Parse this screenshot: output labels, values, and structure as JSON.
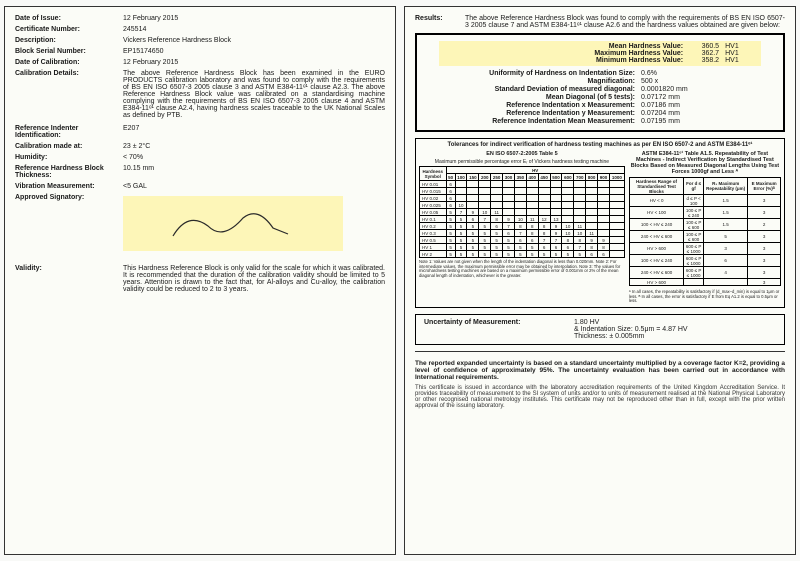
{
  "left": {
    "fields": [
      {
        "label": "Date of Issue:",
        "value": "12 February 2015"
      },
      {
        "label": "Certificate Number:",
        "value": "245514"
      },
      {
        "label": "Description:",
        "value": "Vickers Reference Hardness Block"
      },
      {
        "label": "Block Serial Number:",
        "value": "EP15174650"
      },
      {
        "label": "Date of Calibration:",
        "value": "12 February 2015"
      }
    ],
    "calibration_label": "Calibration Details:",
    "calibration_text": "The above Reference Hardness Block has been examined in the EURO PRODUCTS calibration laboratory and was found to comply with the requirements of BS EN ISO 6507-3 2005 clause 3 and ASTM E384-11ᵉ¹ clause A2.3. The above Reference Hardness Block value was calibrated on a standardising machine complying with the requirements of BS EN ISO 6507-3 2005 clause 4 and ASTM E384-11ᵉ¹ clause A2.4, having hardness scales traceable to the UK National Scales as defined by PTB.",
    "fields2": [
      {
        "label": "Reference Indenter Identification:",
        "value": "E207"
      },
      {
        "label": "Calibration made at:",
        "value": "23 ± 2°C"
      },
      {
        "label": "Humidity:",
        "value": "< 70%"
      },
      {
        "label": "Reference Hardness Block Thickness:",
        "value": "10.15 mm"
      },
      {
        "label": "Vibration Measurement:",
        "value": "<5 GAL"
      }
    ],
    "signatory_label": "Approved Signatory:",
    "validity_label": "Validity:",
    "validity_text": "This Hardness Reference Block is only valid for the scale for which it was calibrated. It is recommended that the duration of the calibration validity should be limited to 5 years. Attention is drawn to the fact that, for Al-alloys and Cu-alloy, the calibration validity could be reduced to 2 to 3 years."
  },
  "right": {
    "results_label": "Results:",
    "results_intro": "The above Reference Hardness Block was found to comply with the requirements of BS EN ISO 6507-3 2005 clause 7 and ASTM E384-11ᵉ¹ clause A2.6 and the hardness values obtained are given below:",
    "hl": [
      {
        "label": "Mean Hardness Value:",
        "value": "360.5",
        "unit": "HV1"
      },
      {
        "label": "Maximum Hardness Value:",
        "value": "362.7",
        "unit": "HV1"
      },
      {
        "label": "Minimum Hardness Value:",
        "value": "358.2",
        "unit": "HV1"
      }
    ],
    "lines": [
      {
        "k": "Uniformity of Hardness on Indentation Size:",
        "v": "0.6%"
      },
      {
        "k": "Magnification:",
        "v": "500 x"
      },
      {
        "k": "Standard Deviation of measured diagonal:",
        "v": "0.0001820 mm"
      },
      {
        "k": "Mean Diagonal (of 5 tests):",
        "v": "0.07172 mm"
      },
      {
        "k": "Reference Indentation x Measurement:",
        "v": "0.07186 mm"
      },
      {
        "k": "Reference Indentation y Measurement:",
        "v": "0.07204 mm"
      },
      {
        "k": "Reference Indentation Mean Measurement:",
        "v": "0.07195 mm"
      }
    ],
    "toler_title": "Tolerances for indirect verification of hardness testing machines as per EN ISO 6507-2 and ASTM E384-11ᵉ¹",
    "toler_left_title": "EN ISO 6507-2:2005 Table 5",
    "toler_right_title": "ASTM E384-11ᵉ¹ Table A1.5. Repeatability of Test Machines - Indirect Verification by Standardised Test Blocks Based on Measured Diagonal Lengths Using Test Forces 1000gf and Less ᴬ",
    "iso_header_top": "Maximum permissible percentage error Eᵣ of Vickers hardness testing machine",
    "iso_rows": [
      {
        "sym": "HV 0.01",
        "r": [
          "6"
        ]
      },
      {
        "sym": "HV 0.015",
        "r": [
          "6"
        ]
      },
      {
        "sym": "HV 0.02",
        "r": [
          "6"
        ]
      },
      {
        "sym": "HV 0.025",
        "r": [
          "6",
          "10"
        ]
      },
      {
        "sym": "HV 0.05",
        "r": [
          "5",
          "7",
          "9",
          "10",
          "11"
        ]
      },
      {
        "sym": "HV 0.1",
        "r": [
          "5",
          "5",
          "6",
          "7",
          "8",
          "9",
          "10",
          "11",
          "12",
          "13"
        ]
      },
      {
        "sym": "HV 0.2",
        "r": [
          "5",
          "5",
          "5",
          "5",
          "6",
          "7",
          "8",
          "8",
          "8",
          "9",
          "10",
          "11"
        ]
      },
      {
        "sym": "HV 0.3",
        "r": [
          "5",
          "5",
          "5",
          "5",
          "5",
          "6",
          "7",
          "8",
          "8",
          "9",
          "10",
          "10",
          "11"
        ]
      },
      {
        "sym": "HV 0.5",
        "r": [
          "5",
          "5",
          "5",
          "5",
          "5",
          "5",
          "6",
          "6",
          "7",
          "7",
          "8",
          "8",
          "9",
          "9"
        ]
      },
      {
        "sym": "HV 1",
        "r": [
          "5",
          "5",
          "5",
          "5",
          "5",
          "5",
          "5",
          "5",
          "6",
          "6",
          "6",
          "7",
          "8",
          "8"
        ]
      },
      {
        "sym": "HV 2",
        "r": [
          "5",
          "5",
          "5",
          "5",
          "5",
          "5",
          "5",
          "5",
          "5",
          "5",
          "5",
          "5",
          "6",
          "6"
        ]
      }
    ],
    "astm_header": [
      "Hardness Range of Standardised Test Blocks",
      "For d ≤ gf",
      "R₁ Maximum Repeatability (μm)",
      "E Maximum Error (%)ᴮ"
    ],
    "astm_rows": [
      [
        "HV < 0",
        "d ≤ P < 100",
        "1.5",
        "3"
      ],
      [
        "HV < 100",
        "100 ≤ P ≤ 240",
        "1.5",
        "3"
      ],
      [
        "100 < HV ≤ 240",
        "100 ≤ P ≤ 600",
        "1.5",
        "2"
      ],
      [
        "240 < HV ≤ 600",
        "100 ≤ P ≤ 600",
        "5",
        "3"
      ],
      [
        "HV > 600",
        "600 ≤ P ≤ 1000",
        "3",
        "3"
      ],
      [
        "100 < HV ≤ 240",
        "600 ≤ P ≤ 1000",
        "6",
        "3"
      ],
      [
        "240 < HV ≤ 600",
        "600 ≤ P ≤ 1000",
        "4",
        "3"
      ],
      [
        "HV > 600",
        "",
        "",
        "3"
      ]
    ],
    "iso_notes": "Note 1: Values are not given when the length of the indentation diagonal is less than 0.020mm.\nNote 2: For intermediate values, the maximum permissible error may be obtained by interpolation.\nNote 3: The values for microhardness testing machines are based on a maximum permissible error of 0.001mm or 2% of the mean diagonal length of indentation, whichever is the greater.",
    "astm_notes": "ᴬ In all cases, the repeatability is satisfactory if (d_max–d_min) is equal to 1μm or less.\nᴮ In all cases, the error is satisfactory if E from Eq A1.2 is equal to 0.5μm or less.",
    "uncert_label": "Uncertainty of Measurement:",
    "uncert_v1": "1.80 HV",
    "uncert_v2": "& Indentation Size: 0.5μm = 4.87 HV",
    "uncert_v3": "Thickness: ± 0.005mm",
    "bottom_bold": "The reported expanded uncertainty is based on a standard uncertainty multiplied by a coverage factor K=2, providing a level of confidence of approximately 95%. The uncertainty evaluation has been carried out in accordance with International requirements.",
    "bottom_note": "This certificate is issued in accordance with the laboratory accreditation requirements of the United Kingdom Accreditation Service. It provides traceability of measurement to the SI system of units and/or to units of measurement realised at the National Physical Laboratory or other recognised national metrology institutes. This certificate may not be reproduced other than in full, except with the prior written approval of the issuing laboratory."
  }
}
